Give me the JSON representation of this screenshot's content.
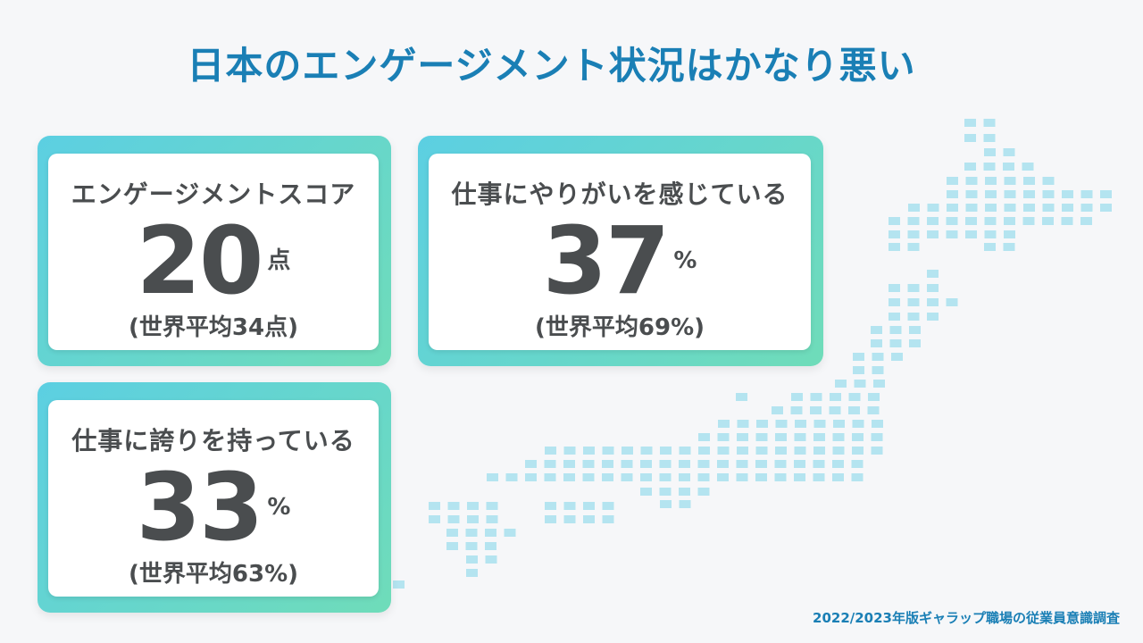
{
  "title": "日本のエンゲージメント状況はかなり悪い",
  "cards": [
    {
      "label": "エンゲージメントスコア",
      "value": "20",
      "unit": "点",
      "average": "(世界平均34点)"
    },
    {
      "label": "仕事にやりがいを感じている",
      "value": "37",
      "unit": "%",
      "average": "(世界平均69%)"
    },
    {
      "label": "仕事に誇りを持っている",
      "value": "33",
      "unit": "%",
      "average": "(世界平均63%)"
    }
  ],
  "source": "2022/2023年版ギャラップ職場の従業員意識調査",
  "colors": {
    "title": "#1a7fb5",
    "card_gradient_start": "#5ccfe2",
    "card_gradient_end": "#6fdcb9",
    "map_dots": "#b4e4f0",
    "text": "#4a4d4f"
  }
}
